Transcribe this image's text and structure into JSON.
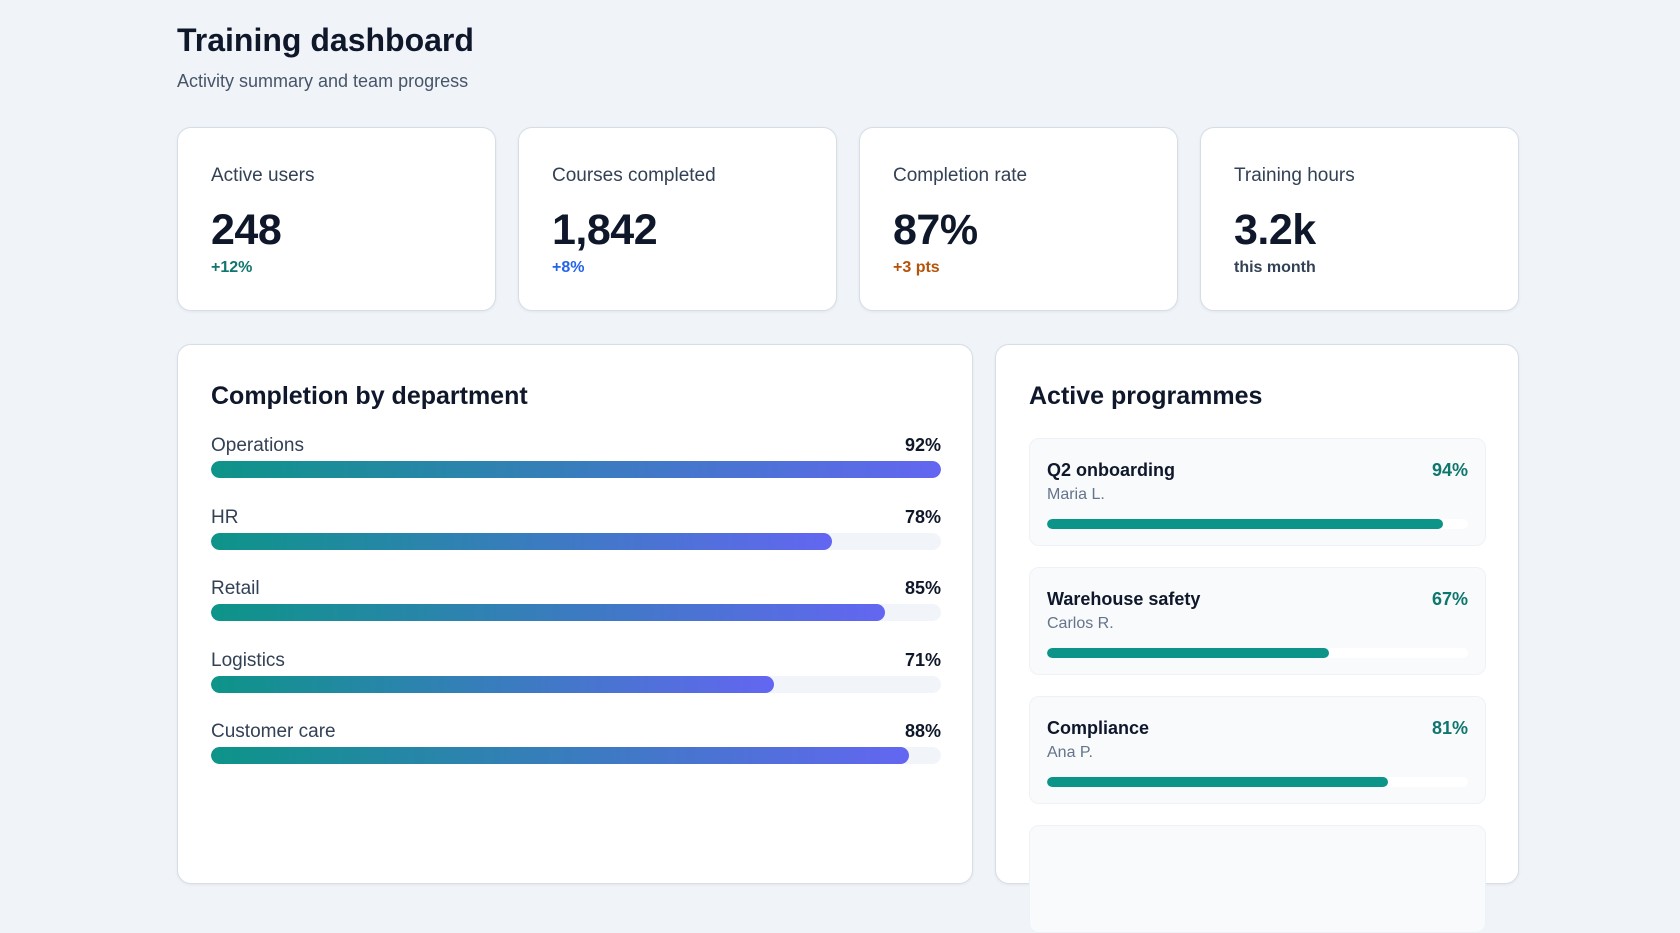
{
  "header": {
    "title": "Training dashboard",
    "subtitle": "Activity summary and team progress"
  },
  "kpis": [
    {
      "label": "Active users",
      "value": "248",
      "delta": "+12%",
      "delta_color": "#0f766e"
    },
    {
      "label": "Courses completed",
      "value": "1,842",
      "delta": "+8%",
      "delta_color": "#2563eb"
    },
    {
      "label": "Completion rate",
      "value": "87%",
      "delta": "+3 pts",
      "delta_color": "#b45309"
    },
    {
      "label": "Training hours",
      "value": "3.2k",
      "delta": "this month",
      "delta_color": "#334155"
    }
  ],
  "departments": {
    "title": "Completion by department",
    "items": [
      {
        "name": "Operations",
        "pct_label": "92%",
        "value": 100
      },
      {
        "name": "HR",
        "pct_label": "78%",
        "value": 85
      },
      {
        "name": "Retail",
        "pct_label": "85%",
        "value": 92.3
      },
      {
        "name": "Logistics",
        "pct_label": "71%",
        "value": 77.1
      },
      {
        "name": "Customer care",
        "pct_label": "88%",
        "value": 95.6
      }
    ],
    "bar_gradient": [
      "#0d9488",
      "#6366f1"
    ]
  },
  "programmes": {
    "title": "Active programmes",
    "items": [
      {
        "name": "Q2 onboarding",
        "owner": "Maria L.",
        "pct_label": "94%",
        "value": 94
      },
      {
        "name": "Warehouse safety",
        "owner": "Carlos R.",
        "pct_label": "67%",
        "value": 67
      },
      {
        "name": "Compliance",
        "owner": "Ana P.",
        "pct_label": "81%",
        "value": 81
      }
    ],
    "bar_color": "#0d9488"
  }
}
